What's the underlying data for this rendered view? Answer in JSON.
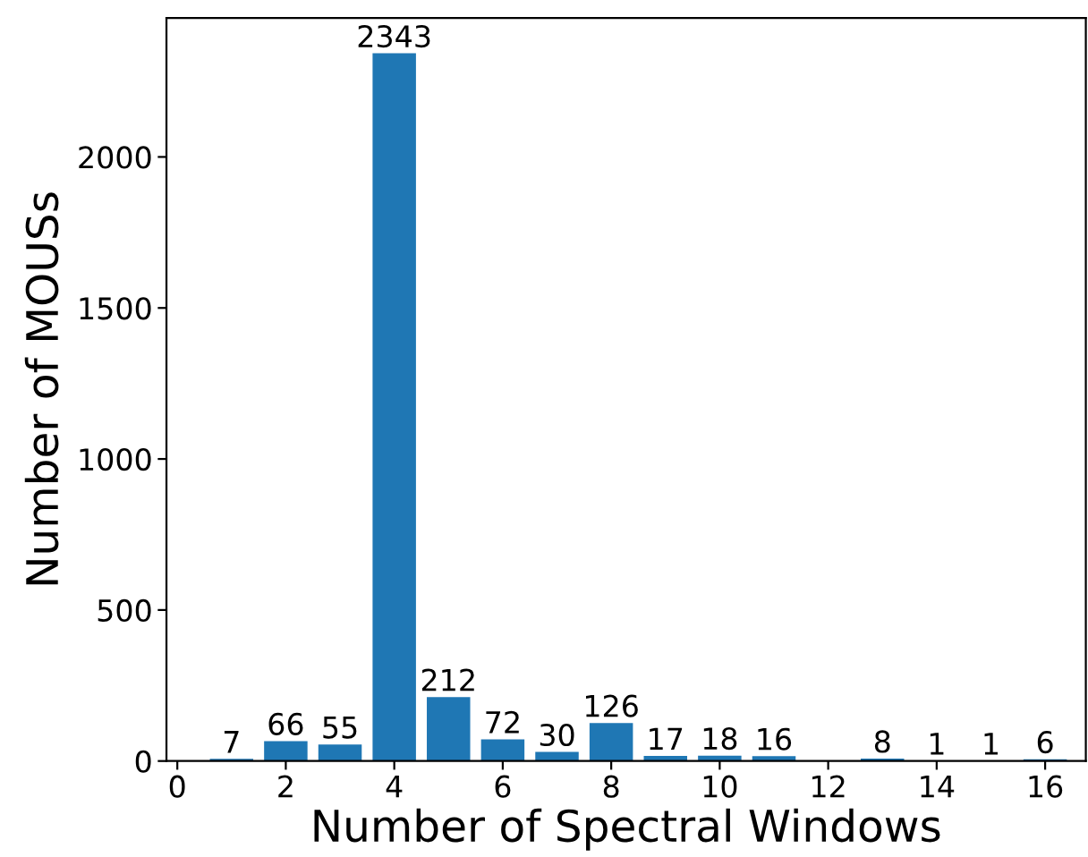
{
  "chart_data": {
    "type": "bar",
    "xlabel": "Number of Spectral Windows",
    "ylabel": "Number of MOUSs",
    "x": [
      1,
      2,
      3,
      4,
      5,
      6,
      7,
      8,
      9,
      10,
      11,
      12,
      13,
      14,
      15,
      16
    ],
    "values": [
      7,
      66,
      55,
      2343,
      212,
      72,
      30,
      126,
      17,
      18,
      16,
      null,
      8,
      1,
      1,
      6
    ],
    "color": "#1f77b4",
    "xlim": [
      -0.2,
      16.75
    ],
    "xticks": [
      0,
      2,
      4,
      6,
      8,
      10,
      12,
      14,
      16
    ],
    "ylim": [
      0,
      2460
    ],
    "yticks": [
      0,
      500,
      1000,
      1500,
      2000
    ],
    "data_labels": true
  }
}
